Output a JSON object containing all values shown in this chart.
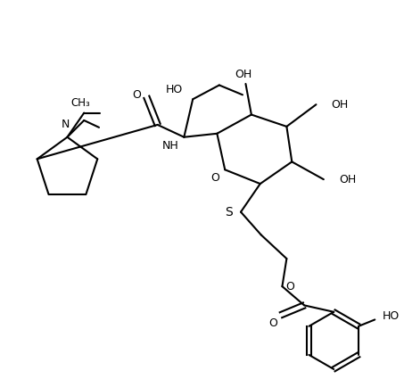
{
  "background": "#ffffff",
  "line_color": "#000000",
  "line_width": 1.5,
  "font_size": 9,
  "figsize": [
    4.53,
    4.25
  ],
  "dpi": 100,
  "xlim": [
    0,
    9.06
  ],
  "ylim": [
    0,
    8.5
  ]
}
